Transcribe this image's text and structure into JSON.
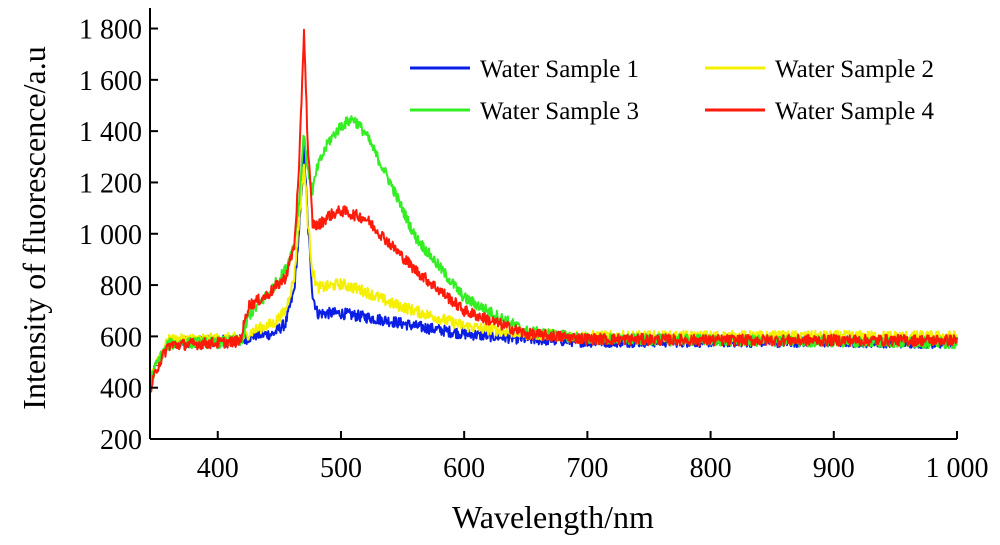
{
  "chart_data": {
    "type": "line",
    "xlabel": "Wavelength/nm",
    "ylabel": "Intensity of fluorescence/a.u",
    "xlim": [
      345,
      1000
    ],
    "ylim": [
      200,
      1880
    ],
    "x_ticks": [
      {
        "value": 400,
        "label": "400"
      },
      {
        "value": 500,
        "label": "500"
      },
      {
        "value": 600,
        "label": "600"
      },
      {
        "value": 700,
        "label": "700"
      },
      {
        "value": 800,
        "label": "800"
      },
      {
        "value": 900,
        "label": "900"
      },
      {
        "value": 1000,
        "label": "1 000"
      }
    ],
    "y_ticks": [
      {
        "value": 200,
        "label": "200"
      },
      {
        "value": 400,
        "label": "400"
      },
      {
        "value": 600,
        "label": "600"
      },
      {
        "value": 800,
        "label": "800"
      },
      {
        "value": 1000,
        "label": "1 000"
      },
      {
        "value": 1200,
        "label": "1 200"
      },
      {
        "value": 1400,
        "label": "1 400"
      },
      {
        "value": 1600,
        "label": "1 600"
      },
      {
        "value": 1800,
        "label": "1 800"
      }
    ],
    "legend_position": "top-right",
    "grid": false,
    "noise_amplitude": 22,
    "series": [
      {
        "name": "Water Sample 1",
        "color": "#0a1ee6",
        "x": [
          345,
          350,
          360,
          380,
          400,
          420,
          430,
          445,
          455,
          462,
          466,
          470,
          473,
          477,
          481,
          490,
          500,
          520,
          540,
          560,
          600,
          650,
          700,
          800,
          900,
          1000
        ],
        "y": [
          420,
          490,
          575,
          580,
          580,
          585,
          605,
          610,
          650,
          780,
          1000,
          1330,
          1050,
          760,
          690,
          690,
          690,
          675,
          660,
          640,
          610,
          590,
          580,
          580,
          580,
          575
        ]
      },
      {
        "name": "Water Sample 2",
        "color": "#f5f000",
        "x": [
          345,
          350,
          360,
          380,
          400,
          420,
          430,
          445,
          455,
          462,
          466,
          470,
          473,
          477,
          481,
          490,
          500,
          520,
          540,
          560,
          600,
          650,
          700,
          800,
          900,
          1000
        ],
        "y": [
          420,
          500,
          585,
          590,
          590,
          595,
          625,
          650,
          700,
          830,
          1050,
          1280,
          1050,
          850,
          790,
          795,
          805,
          775,
          730,
          700,
          640,
          610,
          600,
          600,
          600,
          600
        ]
      },
      {
        "name": "Water Sample 3",
        "color": "#33ee22",
        "x": [
          345,
          350,
          360,
          380,
          400,
          420,
          425,
          440,
          455,
          462,
          466,
          470,
          473,
          477,
          481,
          490,
          500,
          510,
          520,
          540,
          560,
          600,
          650,
          700,
          800,
          900,
          1000
        ],
        "y": [
          410,
          490,
          570,
          575,
          575,
          585,
          680,
          760,
          860,
          960,
          1130,
          1400,
          1250,
          1170,
          1260,
          1360,
          1420,
          1450,
          1390,
          1200,
          990,
          750,
          620,
          590,
          585,
          580,
          575
        ]
      },
      {
        "name": "Water Sample 4",
        "color": "#ff1a0a",
        "x": [
          345,
          350,
          360,
          380,
          400,
          418,
          425,
          440,
          455,
          462,
          466,
          470,
          473,
          477,
          481,
          490,
          500,
          520,
          540,
          560,
          600,
          650,
          700,
          800,
          900,
          1000
        ],
        "y": [
          380,
          470,
          565,
          570,
          575,
          580,
          720,
          760,
          830,
          950,
          1250,
          1800,
          1350,
          1040,
          1030,
          1070,
          1090,
          1060,
          960,
          860,
          700,
          610,
          590,
          585,
          585,
          585
        ]
      }
    ]
  }
}
